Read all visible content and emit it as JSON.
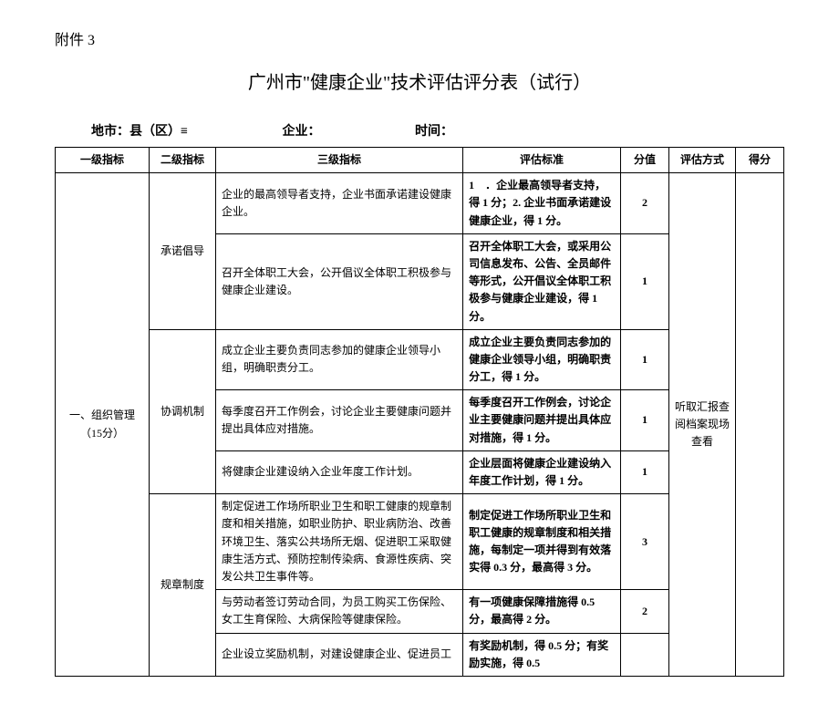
{
  "attachment_label": "附件 3",
  "title": "广州市\"健康企业\"技术评估评分表（试行）",
  "meta": {
    "city_label": "地市：县（区）≡",
    "enterprise_label": "企业：",
    "time_label": "时间："
  },
  "columns": {
    "l1": "一级指标",
    "l2": "二级指标",
    "l3": "三级指标",
    "standard": "评估标准",
    "score": "分值",
    "method": "评估方式",
    "result": "得分"
  },
  "l1": {
    "name": "一、组织管理（15分）"
  },
  "l2": {
    "g1": "承诺倡导",
    "g2": "协调机制",
    "g3": "规章制度"
  },
  "method": "听取汇报查阅档案现场查看",
  "rows": [
    {
      "l3": "企业的最高领导者支持，企业书面承诺建设健康企业。",
      "standard": "1　．企业最高领导者支持，得 1 分；2. 企业书面承诺建设健康企业，得 1 分。",
      "score": "2"
    },
    {
      "l3": "召开全体职工大会，公开倡议全体职工积极参与健康企业建设。",
      "standard": "召开全体职工大会，或采用公司信息发布、公告、全员邮件等形式，公开倡议全体职工积极参与健康企业建设，得 1 分。",
      "score": "1"
    },
    {
      "l3": "成立企业主要负责同志参加的健康企业领导小组，明确职责分工。",
      "standard": "成立企业主要负责同志参加的健康企业领导小组，明确职责分工，得 1 分。",
      "score": "1"
    },
    {
      "l3": "每季度召开工作例会，讨论企业主要健康问题并提出具体应对措施。",
      "standard": "每季度召开工作例会，讨论企业主要健康问题并提出具体应对措施，得 1 分。",
      "score": "1"
    },
    {
      "l3": "将健康企业建设纳入企业年度工作计划。",
      "standard": "企业层面将健康企业建设纳入年度工作计划，得 1 分。",
      "score": "1"
    },
    {
      "l3": "制定促进工作场所职业卫生和职工健康的规章制度和相关措施，如职业防护、职业病防治、改善环境卫生、落实公共场所无烟、促进职工采取健康生活方式、预防控制传染病、食源性疾病、突发公共卫生事件等。",
      "standard": "制定促进工作场所职业卫生和职工健康的规章制度和相关措施，每制定一项并得到有效落实得 0.3 分，最高得 3 分。",
      "score": "3"
    },
    {
      "l3": "与劳动者签订劳动合同，为员工购买工伤保险、女工生育保险、大病保险等健康保险。",
      "standard": "有一项健康保障措施得 0.5 分，最高得 2 分。",
      "score": "2"
    },
    {
      "l3": "企业设立奖励机制，对建设健康企业、促进员工",
      "standard": "有奖励机制，得 0.5 分；有奖励实施，得 0.5",
      "score": ""
    }
  ]
}
